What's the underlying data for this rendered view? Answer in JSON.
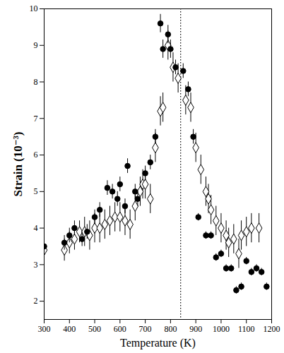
{
  "chart_data": {
    "type": "scatter",
    "x_label": "Temperature (K)",
    "y_label": "Strain (10⁻³)",
    "xlim": [
      300,
      1200
    ],
    "xticks": [
      300,
      400,
      500,
      600,
      700,
      800,
      900,
      1000,
      1100,
      1200
    ],
    "ylim": [
      1.5,
      10
    ],
    "yticks": [
      2,
      3,
      4,
      5,
      6,
      7,
      8,
      9,
      10
    ],
    "reference_line": {
      "x": 840,
      "line_style": "dotted"
    },
    "series": [
      {
        "marker": "open-diamond",
        "color": "#000000",
        "x": [
          300,
          380,
          400,
          420,
          440,
          460,
          480,
          500,
          520,
          540,
          560,
          580,
          600,
          620,
          640,
          660,
          680,
          690,
          700,
          720,
          740,
          760,
          770,
          790,
          810,
          830,
          860,
          880,
          900,
          920,
          940,
          950,
          960,
          980,
          1000,
          1020,
          1030,
          1050,
          1070,
          1080,
          1100,
          1120,
          1150
        ],
        "values": [
          3.4,
          3.4,
          3.6,
          3.7,
          3.9,
          3.9,
          3.8,
          4.0,
          4.0,
          4.1,
          4.2,
          4.3,
          4.3,
          4.2,
          4.1,
          4.6,
          5.0,
          5.2,
          5.2,
          4.8,
          6.2,
          7.2,
          7.3,
          9.0,
          8.4,
          8.1,
          7.5,
          7.3,
          6.2,
          5.6,
          5.0,
          4.8,
          4.5,
          4.2,
          4.0,
          3.8,
          3.6,
          3.7,
          3.3,
          3.8,
          3.9,
          4.0,
          4.0
        ],
        "errors": [
          0.3,
          0.3,
          0.3,
          0.3,
          0.3,
          0.4,
          0.4,
          0.4,
          0.4,
          0.4,
          0.4,
          0.4,
          0.4,
          0.4,
          0.4,
          0.4,
          0.4,
          0.4,
          0.4,
          0.4,
          0.4,
          0.4,
          0.4,
          0.4,
          0.4,
          0.4,
          0.4,
          0.4,
          0.4,
          0.4,
          0.4,
          0.4,
          0.4,
          0.4,
          0.4,
          0.4,
          0.4,
          0.4,
          0.4,
          0.4,
          0.4,
          0.4,
          0.4
        ]
      },
      {
        "marker": "circle",
        "color": "#000000",
        "x": [
          300,
          380,
          400,
          420,
          450,
          470,
          500,
          520,
          550,
          570,
          590,
          600,
          620,
          630,
          660,
          670,
          700,
          720,
          740,
          760,
          770,
          790,
          800,
          820,
          850,
          870,
          890,
          910,
          940,
          960,
          980,
          1000,
          1020,
          1040,
          1060,
          1080,
          1100,
          1120,
          1140,
          1160,
          1180
        ],
        "values": [
          3.5,
          3.6,
          3.8,
          4.0,
          3.7,
          3.9,
          4.3,
          4.5,
          5.1,
          5.0,
          4.8,
          5.2,
          4.6,
          5.7,
          5.0,
          4.8,
          5.5,
          5.8,
          6.5,
          9.6,
          8.9,
          9.3,
          8.9,
          8.4,
          8.3,
          7.8,
          6.5,
          4.3,
          3.8,
          3.8,
          3.2,
          3.3,
          2.9,
          2.9,
          2.3,
          2.4,
          3.1,
          2.8,
          2.9,
          2.8,
          2.4
        ],
        "errors": [
          0.2,
          0.2,
          0.2,
          0.2,
          0.2,
          0.2,
          0.2,
          0.2,
          0.2,
          0.2,
          0.2,
          0.2,
          0.2,
          0.2,
          0.2,
          0.2,
          0.2,
          0.2,
          0.2,
          0.25,
          0.25,
          0.25,
          0.25,
          0.2,
          0.2,
          0.2,
          0.2,
          0.1,
          0.1,
          0.1,
          0.1,
          0.1,
          0.1,
          0.1,
          0.1,
          0.1,
          0.1,
          0.1,
          0.1,
          0.1,
          0.1
        ]
      }
    ]
  }
}
